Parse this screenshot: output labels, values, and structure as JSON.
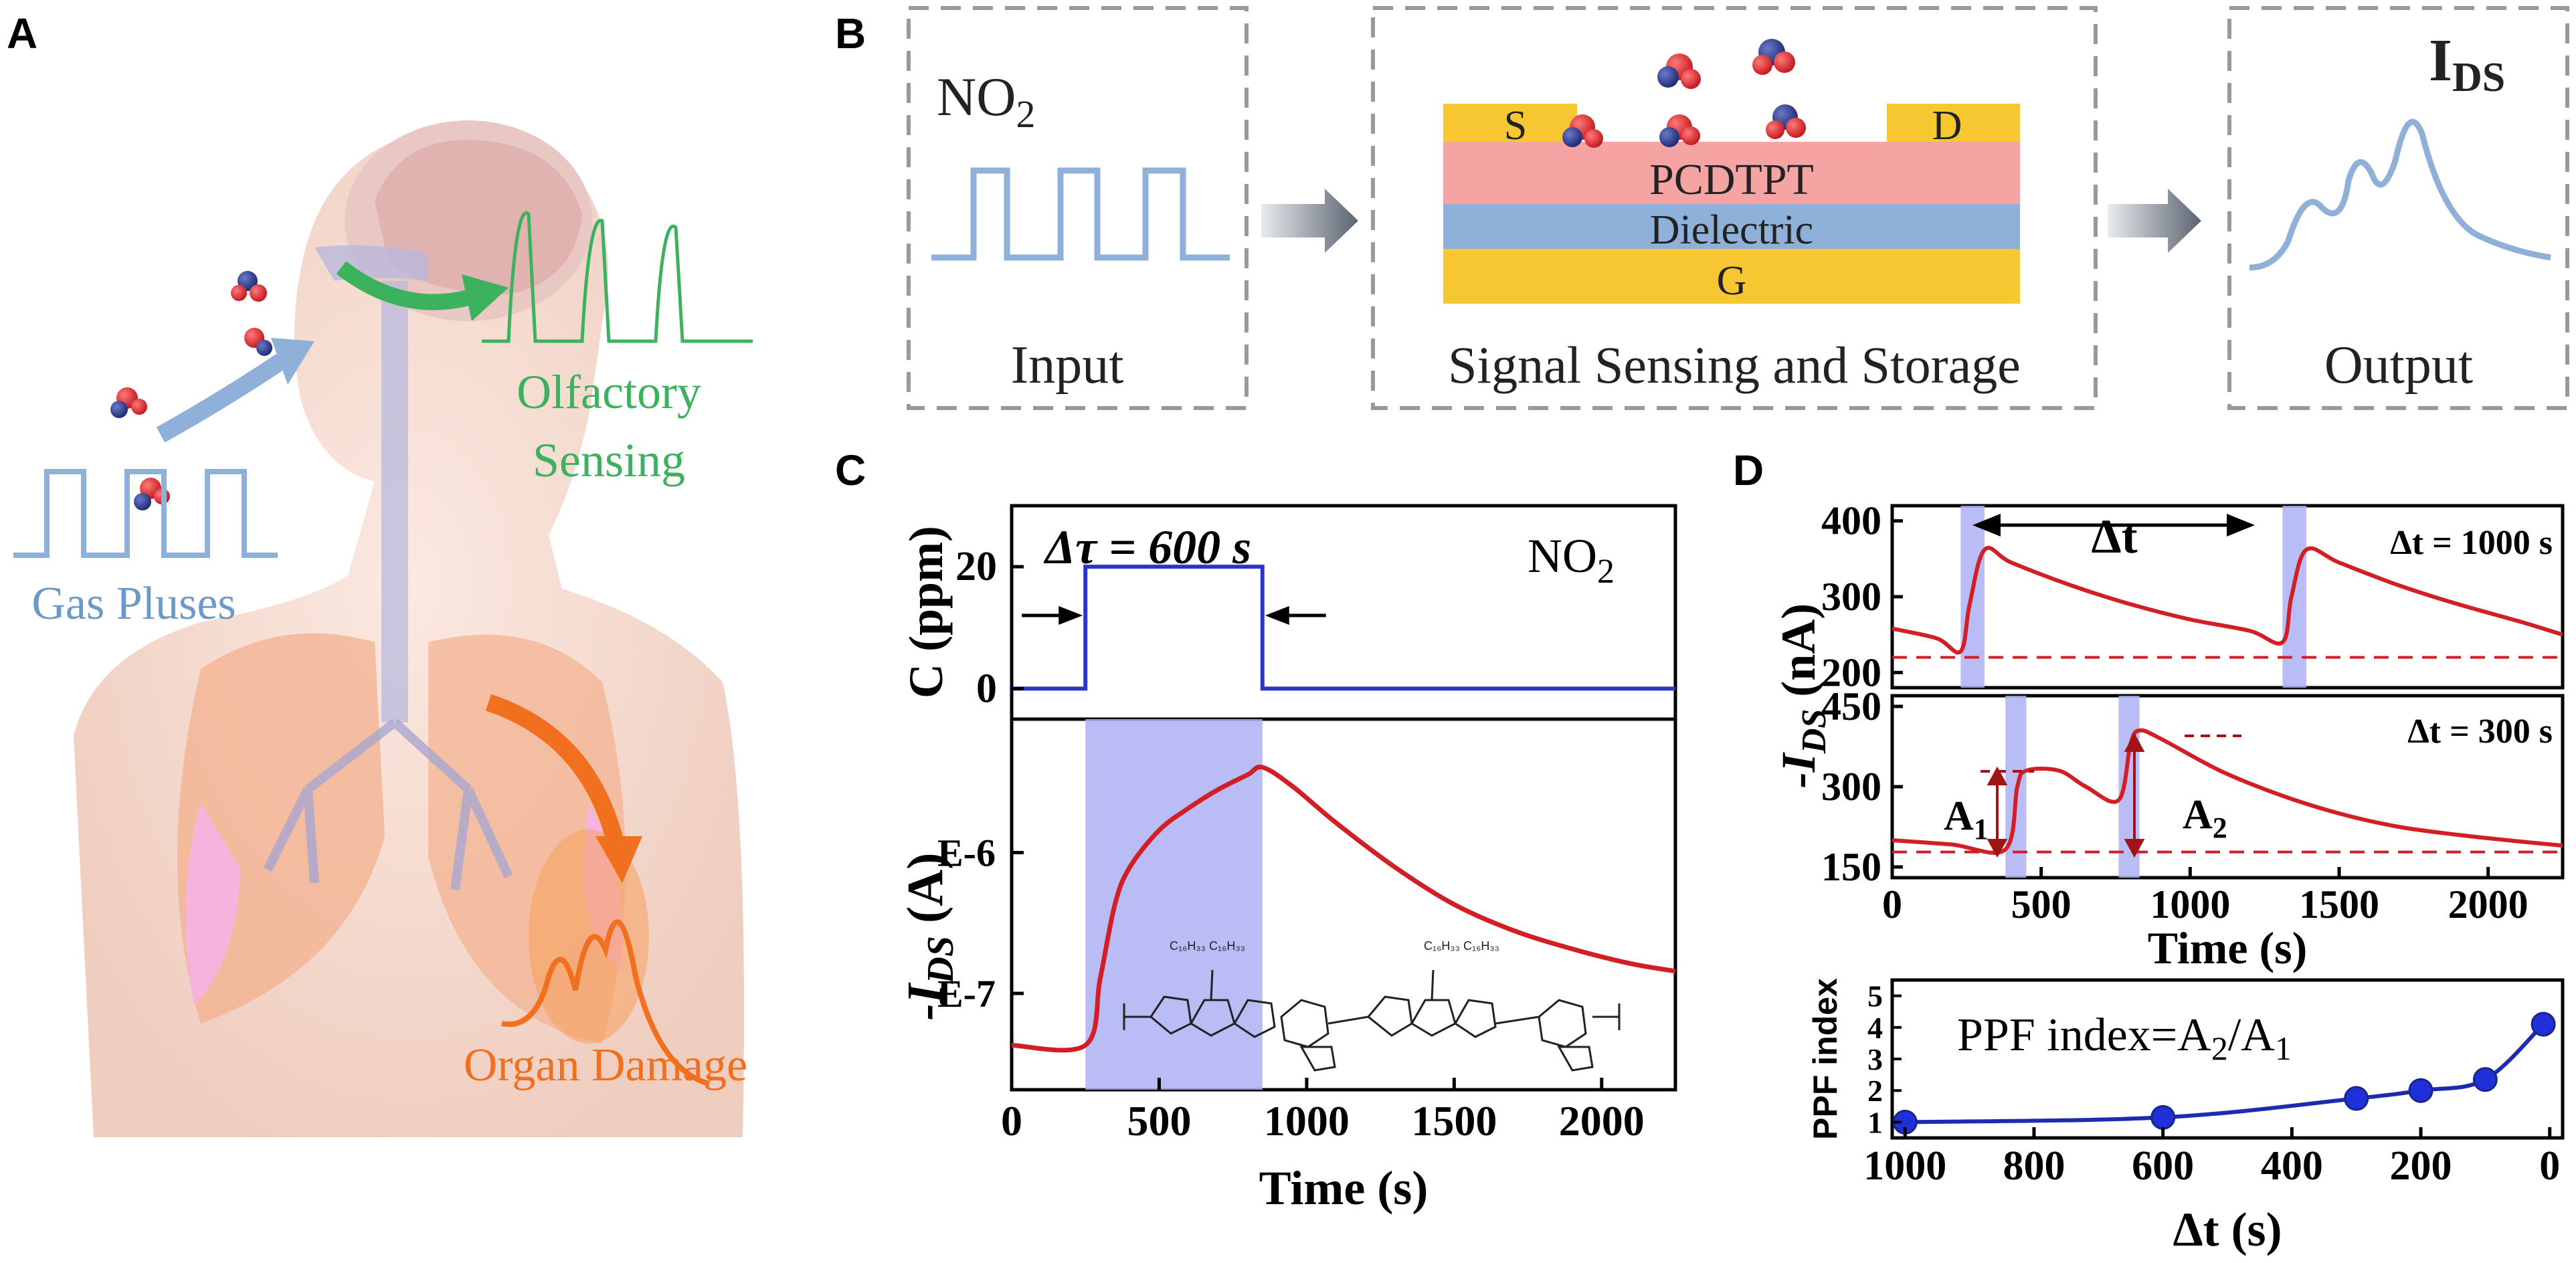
{
  "panel_labels": {
    "a": "A",
    "b": "B",
    "c": "C",
    "d": "D"
  },
  "panelA": {
    "olfactory_line1": "Olfactory",
    "olfactory_line2": "Sensing",
    "gas_pulses": "Gas Pluses",
    "organ_damage": "Organ Damage"
  },
  "panelB": {
    "input_gas_main": "NO",
    "input_gas_sub": "2",
    "input_label": "Input",
    "device_source": "S",
    "device_drain": "D",
    "device_semiconductor": "PCDTPT",
    "device_dielectric": "Dielectric",
    "device_gate": "G",
    "device_label": "Signal Sensing and Storage",
    "output_title_main": "I",
    "output_title_sub": "DS",
    "output_label": "Output"
  },
  "colors": {
    "blue_trace": "#2b35c8",
    "red_trace": "#d21f26",
    "shade": "#aeb0f5",
    "gold": "#f6c730",
    "pink": "#f6a3a3",
    "dielectric": "#8fb0d8",
    "light_blue": "#8fb0d8",
    "green": "#3cb15e",
    "orange": "#f07020",
    "dash": "#999999"
  },
  "chart_data": [
    {
      "id": "C-top",
      "type": "line",
      "title": "",
      "annotation": "Δτ = 600 s",
      "gas_main": "NO",
      "gas_sub": "2",
      "ylabel": "C (ppm)",
      "yticks": [
        "0",
        "20"
      ],
      "ylim": [
        -5,
        30
      ],
      "xlim": [
        0,
        2250
      ],
      "series": [
        {
          "name": "NO2 concentration",
          "x": [
            0,
            250,
            250,
            850,
            850,
            2250
          ],
          "y": [
            0,
            0,
            20,
            20,
            0,
            0
          ]
        }
      ]
    },
    {
      "id": "C-bottom",
      "type": "line",
      "ylabel_main": "-I",
      "ylabel_sub": "DS",
      "ylabel_unit": " (A)",
      "xlabel": "Time (s)",
      "xticks": [
        0,
        500,
        1000,
        1500,
        2000
      ],
      "xtick_labels": [
        "0",
        "500",
        "1000",
        "1500",
        "2000"
      ],
      "ytick_labels": [
        "E-6",
        "E-7"
      ],
      "ylim": [
        0,
        1
      ],
      "shaded_interval": [
        250,
        850
      ],
      "series": [
        {
          "name": "-IDS",
          "x": [
            0,
            250,
            300,
            350,
            400,
            500,
            600,
            700,
            800,
            850,
            950,
            1100,
            1300,
            1500,
            1700,
            1900,
            2100,
            2250
          ],
          "y": [
            0.12,
            0.12,
            0.3,
            0.5,
            0.6,
            0.7,
            0.76,
            0.81,
            0.85,
            0.87,
            0.82,
            0.72,
            0.6,
            0.5,
            0.43,
            0.38,
            0.34,
            0.32
          ]
        }
      ]
    },
    {
      "id": "D-top",
      "type": "line",
      "annotation": "Δt = 1000 s",
      "arrow_label": "Δt",
      "ylim": [
        180,
        420
      ],
      "yticks": [
        200,
        300,
        400
      ],
      "ytick_labels": [
        "200",
        "300",
        "400"
      ],
      "xlim": [
        0,
        2250
      ],
      "baseline": 220,
      "shaded_intervals": [
        [
          230,
          310
        ],
        [
          1310,
          1390
        ]
      ],
      "series": [
        {
          "name": "-IDS",
          "x": [
            0,
            150,
            230,
            260,
            310,
            400,
            600,
            800,
            1000,
            1200,
            1310,
            1340,
            1390,
            1500,
            1700,
            1900,
            2100,
            2250
          ],
          "y": [
            258,
            245,
            228,
            290,
            362,
            345,
            315,
            290,
            270,
            255,
            240,
            300,
            362,
            345,
            315,
            290,
            268,
            250
          ]
        }
      ]
    },
    {
      "id": "D-middle",
      "type": "line",
      "annotation": "Δt = 300 s",
      "a1_label": "A",
      "a1_sub": "1",
      "a2_label": "A",
      "a2_sub": "2",
      "ylabel_main": "-I",
      "ylabel_sub": "DS",
      "ylabel_unit": " (nA)",
      "xlabel": "Time (s)",
      "ylim": [
        130,
        470
      ],
      "yticks": [
        150,
        300,
        450
      ],
      "ytick_labels": [
        "150",
        "300",
        "450"
      ],
      "xlim": [
        0,
        2250
      ],
      "xticks": [
        0,
        500,
        1000,
        1500,
        2000
      ],
      "xtick_labels": [
        "0",
        "500",
        "1000",
        "1500",
        "2000"
      ],
      "baseline": 178,
      "shaded_intervals": [
        [
          380,
          450
        ],
        [
          760,
          830
        ]
      ],
      "series": [
        {
          "name": "-IDS",
          "x": [
            0,
            200,
            380,
            420,
            450,
            560,
            650,
            760,
            800,
            830,
            900,
            1100,
            1300,
            1500,
            1700,
            1900,
            2100,
            2250
          ],
          "y": [
            200,
            192,
            183,
            300,
            330,
            330,
            300,
            275,
            380,
            405,
            390,
            330,
            285,
            250,
            225,
            210,
            198,
            190
          ]
        }
      ]
    },
    {
      "id": "D-bottom",
      "type": "scatter",
      "title": "PPF index=A2/A1",
      "ylabel": "PPF index",
      "xlabel": "Δt (s)",
      "xticks": [
        1000,
        800,
        600,
        400,
        200,
        0
      ],
      "xtick_labels": [
        "1000",
        "800",
        "600",
        "400",
        "200",
        "0"
      ],
      "xlim": [
        1020,
        -20
      ],
      "ytick_labels": [
        "1",
        "2",
        "3",
        "4",
        "5"
      ],
      "ylim": [
        0.5,
        5.5
      ],
      "series": [
        {
          "name": "PPF",
          "x": [
            1000,
            600,
            300,
            200,
            100,
            10
          ],
          "y": [
            1.0,
            1.15,
            1.75,
            2.0,
            2.35,
            4.1
          ]
        }
      ]
    }
  ]
}
